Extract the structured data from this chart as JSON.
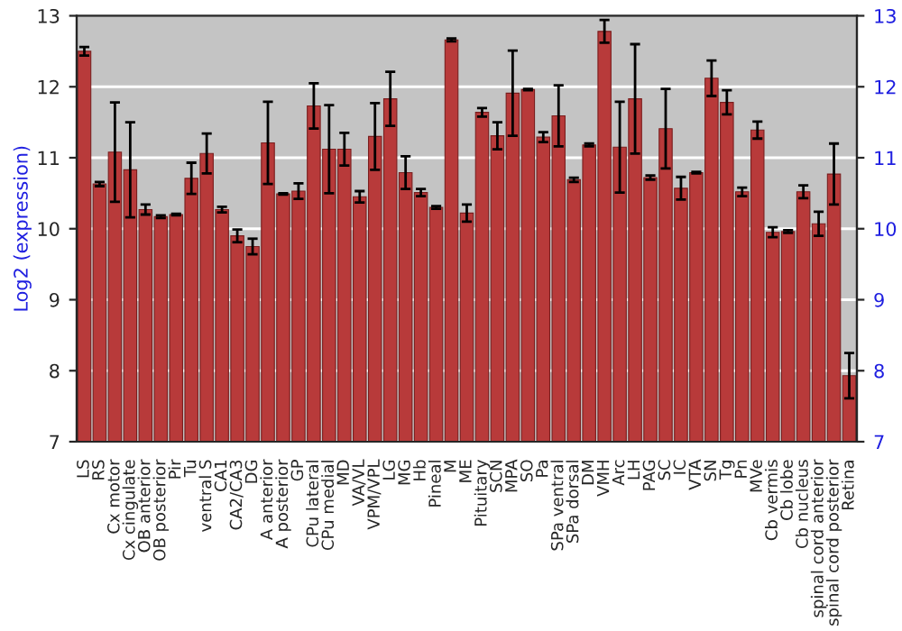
{
  "chart_data": {
    "type": "bar",
    "ylabel": "Log2 (expression)",
    "categories": [
      "LS",
      "RS",
      "Cx motor",
      "Cx cingulate",
      "OB anterior",
      "OB posterior",
      "Pir",
      "Tu",
      "ventral S",
      "CA1",
      "CA2/CA3",
      "DG",
      "A anterior",
      "A posterior",
      "GP",
      "CPu lateral",
      "CPu medial",
      "MD",
      "VA/VL",
      "VPM/VPL",
      "LG",
      "MG",
      "Hb",
      "Pineal",
      "M",
      "ME",
      "Pituitary",
      "SCN",
      "MPA",
      "SO",
      "Pa",
      "SPa ventral",
      "SPa dorsal",
      "DM",
      "VMH",
      "Arc",
      "LH",
      "PAG",
      "SC",
      "IC",
      "VTA",
      "SN",
      "Tg",
      "Pn",
      "MVe",
      "Cb vermis",
      "Cb lobe",
      "Cb nucleus",
      "spinal cord anterior",
      "spinal cord posterior",
      "Retina"
    ],
    "values": [
      12.5,
      10.63,
      11.08,
      10.83,
      10.27,
      10.17,
      10.2,
      10.71,
      11.06,
      10.27,
      9.9,
      9.75,
      11.21,
      10.49,
      10.53,
      11.73,
      11.12,
      11.12,
      10.45,
      11.3,
      11.83,
      10.79,
      10.51,
      10.3,
      12.66,
      10.22,
      11.64,
      11.31,
      11.91,
      11.96,
      11.29,
      11.59,
      10.69,
      11.18,
      12.78,
      11.15,
      11.83,
      10.72,
      11.41,
      10.57,
      10.79,
      12.12,
      11.78,
      10.52,
      11.39,
      9.95,
      9.96,
      10.52,
      10.07,
      10.77,
      7.93
    ],
    "errors": [
      0.06,
      0.03,
      0.7,
      0.67,
      0.07,
      0.02,
      0.01,
      0.22,
      0.28,
      0.04,
      0.09,
      0.11,
      0.58,
      0.01,
      0.11,
      0.32,
      0.62,
      0.23,
      0.08,
      0.47,
      0.38,
      0.23,
      0.05,
      0.02,
      0.02,
      0.12,
      0.06,
      0.19,
      0.6,
      0.01,
      0.07,
      0.43,
      0.03,
      0.02,
      0.16,
      0.64,
      0.77,
      0.03,
      0.56,
      0.16,
      0.01,
      0.25,
      0.17,
      0.06,
      0.12,
      0.07,
      0.02,
      0.09,
      0.17,
      0.43,
      0.32
    ],
    "color": "#b83a3a",
    "ylim": [
      7,
      13
    ],
    "yticks": [
      7,
      8,
      9,
      10,
      11,
      12,
      13
    ],
    "y2lim": [
      7,
      13
    ],
    "y2ticks": [
      7,
      8,
      9,
      10,
      11,
      12,
      13
    ],
    "grid": "y",
    "legend": false
  }
}
